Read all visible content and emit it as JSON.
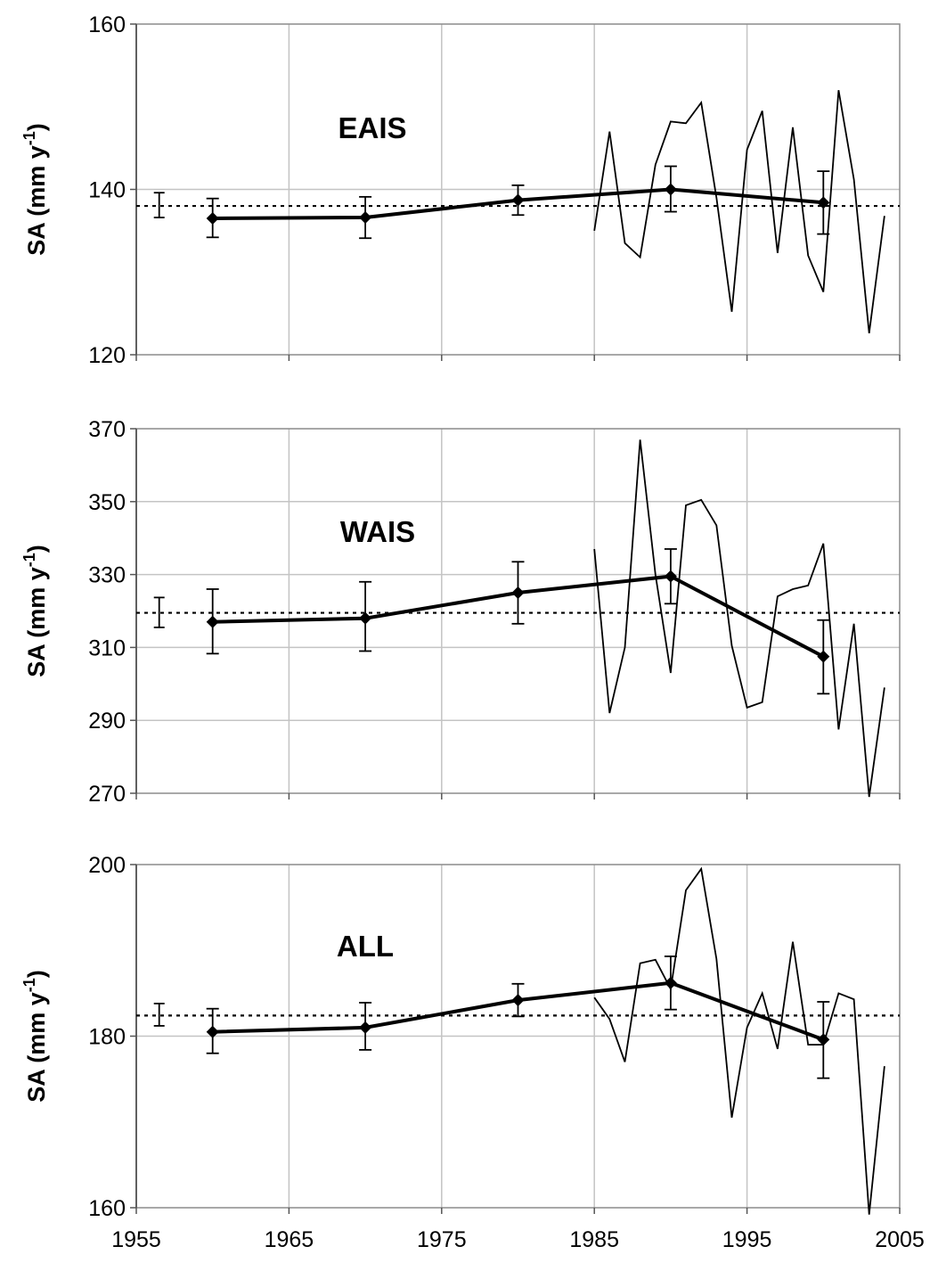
{
  "chart_data": [
    {
      "type": "line",
      "panel_label": "EAIS",
      "ylabel_main": "SA (mm y",
      "ylabel_sup": "-1",
      "ylabel_end": ")",
      "xlim": [
        1955,
        2005
      ],
      "ylim": [
        120,
        160
      ],
      "yticks": [
        120,
        140,
        160
      ],
      "xticks": [
        1955,
        1965,
        1975,
        1985,
        1995,
        2005
      ],
      "grid": true,
      "mean": 138,
      "mean_error": {
        "x": 1956.5,
        "low": 136.6,
        "high": 139.6
      },
      "series": [
        {
          "style": "thick-markers",
          "x": [
            1960,
            1970,
            1980,
            1990,
            2000
          ],
          "y": [
            136.5,
            136.6,
            138.7,
            140.0,
            138.4
          ],
          "err_low": [
            134.2,
            134.1,
            136.9,
            137.3,
            134.6
          ],
          "err_high": [
            138.9,
            139.1,
            140.5,
            142.8,
            142.2
          ]
        },
        {
          "style": "thin",
          "x": [
            1985,
            1986,
            1987,
            1988,
            1989,
            1990,
            1991,
            1992,
            1993,
            1994,
            1995,
            1996,
            1997,
            1998,
            1999,
            2000,
            2001,
            2002,
            2003,
            2004
          ],
          "y": [
            135,
            147,
            133.5,
            131.8,
            143,
            148.2,
            148,
            150.5,
            139,
            125.2,
            144.8,
            149.5,
            132.3,
            147.5,
            132,
            127.6,
            152,
            141.2,
            122.6,
            136.8
          ]
        }
      ]
    },
    {
      "type": "line",
      "panel_label": "WAIS",
      "ylabel_main": "SA (mm y",
      "ylabel_sup": "-1",
      "ylabel_end": ")",
      "xlim": [
        1955,
        2005
      ],
      "ylim": [
        270,
        370
      ],
      "yticks": [
        270,
        290,
        310,
        330,
        350,
        370
      ],
      "xticks": [
        1955,
        1965,
        1975,
        1985,
        1995,
        2005
      ],
      "grid": true,
      "mean": 319.5,
      "mean_error": {
        "x": 1956.5,
        "low": 315.5,
        "high": 323.7
      },
      "series": [
        {
          "style": "thick-markers",
          "x": [
            1960,
            1970,
            1980,
            1990,
            2000
          ],
          "y": [
            317,
            318,
            325,
            329.5,
            307.5
          ],
          "err_low": [
            308.3,
            309,
            316.5,
            322,
            297.3
          ],
          "err_high": [
            326,
            328,
            333.5,
            337,
            317.5
          ]
        },
        {
          "style": "thin",
          "x": [
            1985,
            1986,
            1987,
            1988,
            1989,
            1990,
            1991,
            1992,
            1993,
            1994,
            1995,
            1996,
            1997,
            1998,
            1999,
            2000,
            2001,
            2002,
            2003,
            2004
          ],
          "y": [
            337,
            292,
            310,
            367,
            330,
            303,
            349,
            350.5,
            343.5,
            310.5,
            293.5,
            295,
            324,
            326,
            327,
            338.5,
            287.5,
            316.5,
            269,
            299
          ]
        }
      ]
    },
    {
      "type": "line",
      "panel_label": "ALL",
      "ylabel_main": "SA (mm y",
      "ylabel_sup": "-1",
      "ylabel_end": ")",
      "xlim": [
        1955,
        2005
      ],
      "ylim": [
        160,
        200
      ],
      "yticks": [
        160,
        180,
        200
      ],
      "xticks": [
        1955,
        1965,
        1975,
        1985,
        1995,
        2005
      ],
      "xtick_labels": [
        "1955",
        "1965",
        "1975",
        "1985",
        "1995",
        "2005"
      ],
      "grid": true,
      "mean": 182.4,
      "mean_error": {
        "x": 1956.5,
        "low": 181.2,
        "high": 183.8
      },
      "series": [
        {
          "style": "thick-markers",
          "x": [
            1960,
            1970,
            1980,
            1990,
            2000
          ],
          "y": [
            180.5,
            181,
            184.2,
            186.2,
            179.6
          ],
          "err_low": [
            178,
            178.4,
            182.3,
            183.1,
            175.1
          ],
          "err_high": [
            183.2,
            183.9,
            186.1,
            189.3,
            184
          ]
        },
        {
          "style": "thin",
          "x": [
            1985,
            1986,
            1987,
            1988,
            1989,
            1990,
            1991,
            1992,
            1993,
            1994,
            1995,
            1996,
            1997,
            1998,
            1999,
            2000,
            2001,
            2002,
            2003,
            2004
          ],
          "y": [
            184.5,
            182,
            177,
            188.5,
            188.9,
            185.5,
            197,
            199.5,
            189,
            170.5,
            181,
            185,
            178.5,
            191,
            179,
            179,
            185,
            184.3,
            159.2,
            176.5
          ]
        }
      ]
    }
  ]
}
